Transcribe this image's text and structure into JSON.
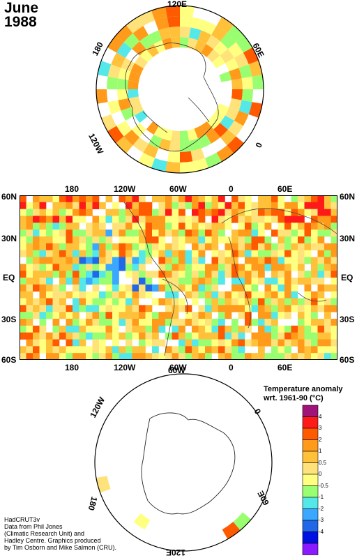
{
  "title": {
    "month": "June",
    "year": "1988"
  },
  "north_map": {
    "labels": {
      "top": "120E",
      "left": "180",
      "right": "60E",
      "lower_left": "120W",
      "lower_right": "0"
    }
  },
  "world_map": {
    "top_lon_labels": [
      "180",
      "120W",
      "60W",
      "0",
      "60E"
    ],
    "bottom_lon_labels": [
      "180",
      "120W",
      "60W",
      "0",
      "60E"
    ],
    "lat_labels": [
      "60N",
      "30N",
      "EQ",
      "30S",
      "60S"
    ]
  },
  "south_map": {
    "labels": {
      "upper_left": "120W",
      "top": "60W",
      "right": "0",
      "left": "180",
      "lower_right": "60E",
      "bottom": "120E"
    }
  },
  "legend": {
    "title": "Temperature anomaly",
    "subtitle": "wrt. 1961-90  (°C)",
    "bins": [
      {
        "color": "#a0147a"
      },
      {
        "color": "#ff1a1a"
      },
      {
        "color": "#ff5a00"
      },
      {
        "color": "#ff9a1a"
      },
      {
        "color": "#ffc03a"
      },
      {
        "color": "#ffe37a"
      },
      {
        "color": "#ffff80"
      },
      {
        "color": "#9aff70"
      },
      {
        "color": "#55e8e8"
      },
      {
        "color": "#3aa8ff"
      },
      {
        "color": "#2068e8"
      },
      {
        "color": "#0010e0"
      },
      {
        "color": "#8a1aff"
      }
    ],
    "labels": [
      "4",
      "3",
      "2",
      "1",
      "0.5",
      "0",
      "-0.5",
      "-1",
      "-2",
      "-3",
      "-4"
    ]
  },
  "credits": [
    "HadCRUT3v",
    "Data from Phil Jones",
    "(Climatic Research Unit) and",
    "Hadley Centre.  Graphics produced",
    "by Tim Osborn and Mike Salmon (CRU)."
  ]
}
